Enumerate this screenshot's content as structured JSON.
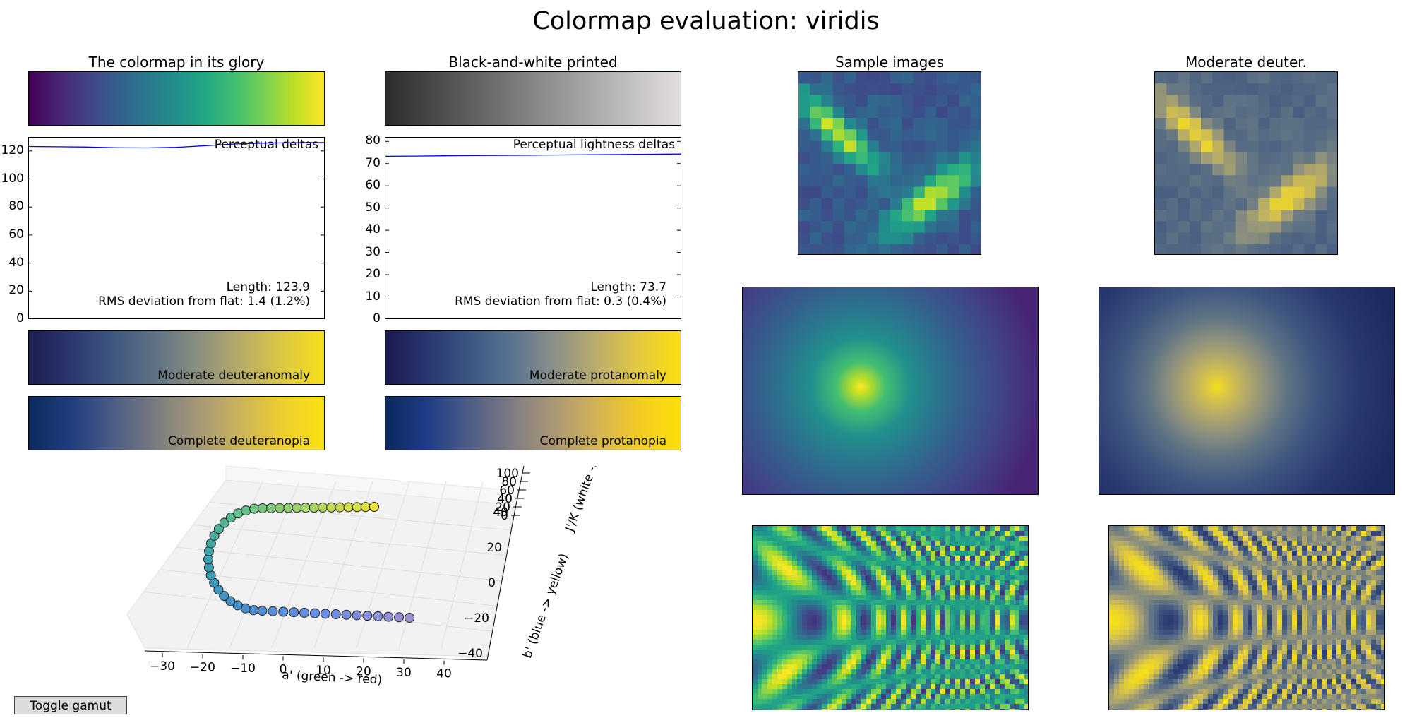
{
  "figure_title": "Colormap evaluation: viridis",
  "panels": {
    "glory_title": "The colormap in its glory",
    "bw_title": "Black-and-white printed",
    "sample_title": "Sample images",
    "deuter_title": "Moderate deuter."
  },
  "strips": {
    "deuteranomaly": "Moderate deuteranomaly",
    "protanomaly": "Moderate protanomaly",
    "deuteranopia": "Complete deuteranopia",
    "protanopia": "Complete protanopia"
  },
  "colors": {
    "viridis": [
      "#440154",
      "#482475",
      "#414487",
      "#355f8d",
      "#2a788e",
      "#21908d",
      "#22a884",
      "#42be71",
      "#7ad151",
      "#bddf26",
      "#fde725"
    ],
    "deuteranomaly": [
      "#1d1d4f",
      "#2a3870",
      "#3f5680",
      "#5f7385",
      "#898e7e",
      "#b5aa68",
      "#dcc743",
      "#f6df18"
    ],
    "deuteranopia": [
      "#0d2a5c",
      "#203e80",
      "#4c5c84",
      "#7a7c80",
      "#a49776",
      "#cbb35c",
      "#ecce2e",
      "#fbe112"
    ],
    "protanomaly": [
      "#1c1a50",
      "#283770",
      "#3c5783",
      "#5b7491",
      "#8a9089",
      "#bbac6b",
      "#e3c840",
      "#fce010"
    ],
    "protanopia": [
      "#0b2860",
      "#1f3d86",
      "#4e5d87",
      "#7f7c82",
      "#aa9774",
      "#d3b257",
      "#f2cb23",
      "#fcdf08"
    ],
    "bw": [
      "#2c2c2c",
      "#e1dedd"
    ],
    "line": "#0000ff"
  },
  "chart_data": [
    {
      "type": "line",
      "title": "Perceptual deltas",
      "ylim": [
        0,
        130
      ],
      "yticks": [
        "0",
        "20",
        "40",
        "60",
        "80",
        "100",
        "120"
      ],
      "x": [
        0,
        0.1,
        0.2,
        0.3,
        0.4,
        0.5,
        0.6,
        0.7,
        0.8,
        0.9,
        1.0
      ],
      "values": [
        123.2,
        123.0,
        122.8,
        122.3,
        122.2,
        122.6,
        123.8,
        125.0,
        125.6,
        125.9,
        126.0
      ],
      "annotations": [
        "Length: 123.9",
        "RMS deviation from flat: 1.4 (1.2%)"
      ]
    },
    {
      "type": "line",
      "title": "Perceptual lightness deltas",
      "ylim": [
        0,
        82
      ],
      "yticks": [
        "0",
        "10",
        "20",
        "30",
        "40",
        "50",
        "60",
        "70",
        "80"
      ],
      "x": [
        0,
        0.1,
        0.2,
        0.3,
        0.4,
        0.5,
        0.6,
        0.7,
        0.8,
        0.9,
        1.0
      ],
      "values": [
        73.3,
        73.4,
        73.5,
        73.6,
        73.7,
        73.8,
        73.9,
        74.0,
        74.1,
        74.2,
        74.3
      ],
      "annotations": [
        "Length: 73.7",
        "RMS deviation from flat: 0.3 (0.4%)"
      ]
    },
    {
      "type": "scatter",
      "x_axis_label": "a' (green -> red)",
      "y_axis_label": "b' (blue -> yellow)",
      "z_axis_label": "J'/K (white -> black)",
      "xticks": [
        "−30",
        "−20",
        "−10",
        "0",
        "10",
        "20",
        "30",
        "40"
      ],
      "yticks": [
        "−40",
        "−20",
        "0",
        "20",
        "40"
      ],
      "zticks": [
        "0",
        "20",
        "40",
        "60",
        "80",
        "100"
      ]
    }
  ],
  "controls": {
    "toggle_label": "Toggle gamut"
  }
}
